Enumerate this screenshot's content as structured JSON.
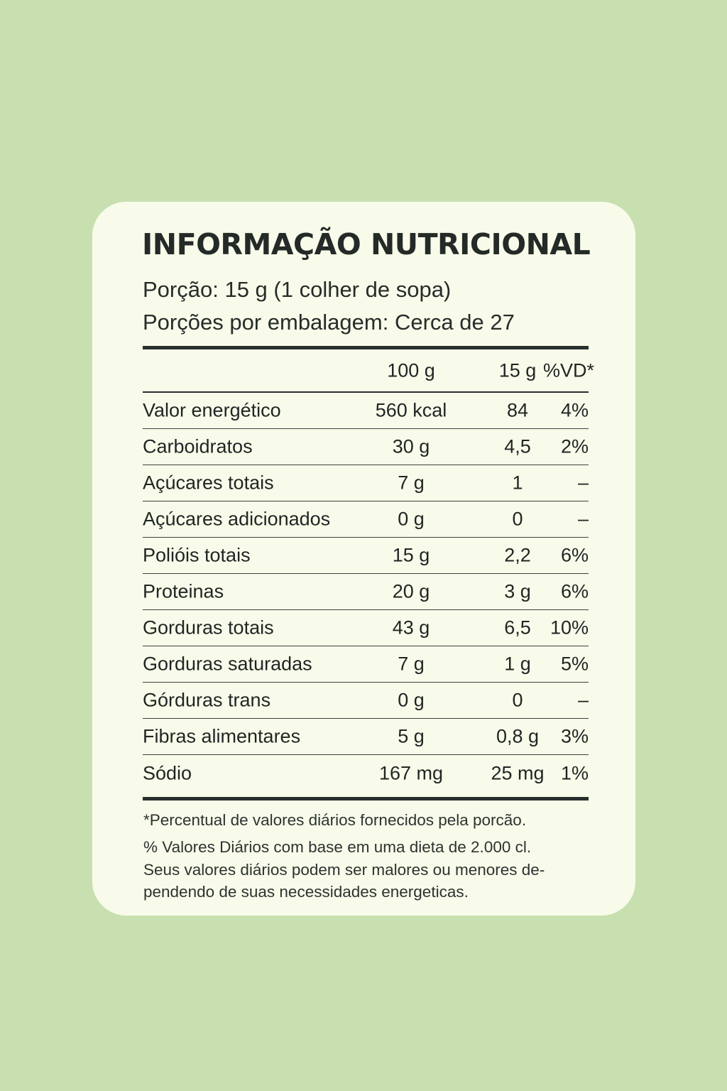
{
  "label": {
    "title": "INFORMAÇÃO NUTRICIONAL",
    "serving_size": "Porção: 15 g (1 colher de sopa)",
    "servings_per_package": "Porções por embalagem: Cerca de 27",
    "columns": {
      "per_100g": "100 g",
      "per_portion": "15 g",
      "dv": "%VD*"
    },
    "rows": [
      {
        "name": "Valor energético",
        "per_100g": "560 kcal",
        "per_portion": "84",
        "dv": "4%"
      },
      {
        "name": "Carboidratos",
        "per_100g": "30 g",
        "per_portion": "4,5",
        "dv": "2%"
      },
      {
        "name": "Açúcares totais",
        "per_100g": "7 g",
        "per_portion": "1",
        "dv": "–"
      },
      {
        "name": "Açúcares adicionados",
        "per_100g": "0 g",
        "per_portion": "0",
        "dv": "–"
      },
      {
        "name": "Polióis totais",
        "per_100g": "15 g",
        "per_portion": "2,2",
        "dv": "6%"
      },
      {
        "name": "Proteinas",
        "per_100g": "20 g",
        "per_portion": "3 g",
        "dv": "6%"
      },
      {
        "name": "Gorduras totais",
        "per_100g": "43 g",
        "per_portion": "6,5",
        "dv": "10%"
      },
      {
        "name": "Gorduras saturadas",
        "per_100g": "7 g",
        "per_portion": "1 g",
        "dv": "5%"
      },
      {
        "name": "Górduras trans",
        "per_100g": "0 g",
        "per_portion": "0",
        "dv": "–"
      },
      {
        "name": "Fibras alimentares",
        "per_100g": "5 g",
        "per_portion": "0,8 g",
        "dv": "3%"
      },
      {
        "name": "Sódio",
        "per_100g": "167 mg",
        "per_portion": "25 mg",
        "dv": "1%"
      }
    ],
    "footnotes": [
      "*Percentual de valores diários fornecidos pela porcão.",
      "% Valores Diários com base em uma dieta de 2.000 cl.",
      "Seus valores diários podem ser malores ou menores de-",
      "pendendo de suas necessidades energeticas."
    ]
  },
  "colors": {
    "background": "#c8e0b0",
    "card": "#f8fbea",
    "text": "#1f2523"
  }
}
